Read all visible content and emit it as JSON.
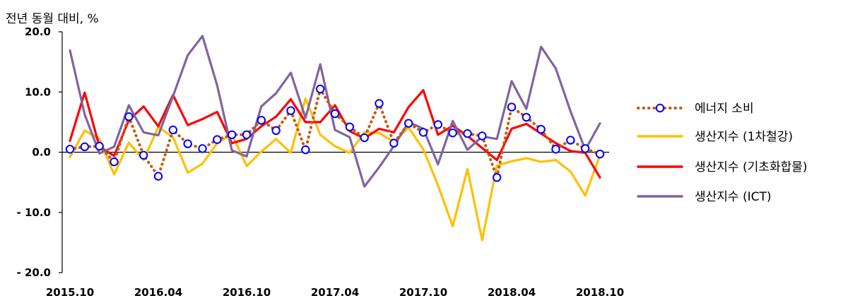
{
  "chart_data": {
    "type": "line",
    "ylabel": "전년 동월 대비, %",
    "ylim": [
      -20,
      20
    ],
    "y_ticks": [
      "20.0",
      "10.0",
      "0.0",
      "- 10.0",
      "- 20.0"
    ],
    "y_tick_values": [
      20,
      10,
      0,
      -10,
      -20
    ],
    "x_tick_labels": [
      "2015.10",
      "2016.04",
      "2016.10",
      "2017.04",
      "2017.10",
      "2018.04",
      "2018.10"
    ],
    "x_tick_index": [
      0,
      6,
      12,
      18,
      24,
      30,
      36
    ],
    "x": [
      "2015.10",
      "2015.11",
      "2015.12",
      "2016.01",
      "2016.02",
      "2016.03",
      "2016.04",
      "2016.05",
      "2016.06",
      "2016.07",
      "2016.08",
      "2016.09",
      "2016.10",
      "2016.11",
      "2016.12",
      "2017.01",
      "2017.02",
      "2017.03",
      "2017.04",
      "2017.05",
      "2017.06",
      "2017.07",
      "2017.08",
      "2017.09",
      "2017.10",
      "2017.11",
      "2017.12",
      "2018.01",
      "2018.02",
      "2018.03",
      "2018.04",
      "2018.05",
      "2018.06",
      "2018.07",
      "2018.08",
      "2018.09",
      "2018.10"
    ],
    "legend_position": "right",
    "series": [
      {
        "name": "에너지 소비",
        "style": "dotted-with-circles",
        "color": "#C55A11",
        "marker_color": "#0000FF",
        "values": [
          0.5,
          0.9,
          1.0,
          -1.6,
          5.9,
          -0.5,
          -4.0,
          3.7,
          1.4,
          0.6,
          2.1,
          2.9,
          2.9,
          5.3,
          3.6,
          6.9,
          0.4,
          10.5,
          6.4,
          4.2,
          2.4,
          8.1,
          1.5,
          4.8,
          3.3,
          4.6,
          3.2,
          3.1,
          2.7,
          -4.2,
          7.5,
          5.8,
          3.8,
          0.5,
          2.0,
          0.6,
          -0.3
        ]
      },
      {
        "name": "생산지수 (1차철강)",
        "style": "solid",
        "color": "#FFC000",
        "values": [
          -0.8,
          3.6,
          2.2,
          -3.7,
          1.6,
          -1.3,
          4.2,
          2.5,
          -3.4,
          -1.9,
          1.5,
          3.0,
          -2.3,
          0.1,
          2.2,
          -0.1,
          8.9,
          2.9,
          1.0,
          -0.1,
          3.3,
          3.2,
          1.7,
          4.1,
          0.5,
          -5.5,
          -12.3,
          -2.8,
          -14.6,
          -2.2,
          -1.5,
          -1.0,
          -1.6,
          -1.3,
          -3.2,
          -7.2,
          -0.5
        ]
      },
      {
        "name": "생산지수 (기초화합물)",
        "style": "solid",
        "color": "#FF0000",
        "values": [
          1.9,
          9.9,
          0.9,
          -0.6,
          5.3,
          7.6,
          4.3,
          9.5,
          4.5,
          5.5,
          6.7,
          1.5,
          2.2,
          4.3,
          5.9,
          8.8,
          5.0,
          5.0,
          7.8,
          3.5,
          2.3,
          3.9,
          3.3,
          7.5,
          10.3,
          2.9,
          4.4,
          2.7,
          0.7,
          -1.3,
          3.9,
          4.7,
          3.1,
          1.5,
          0.2,
          -0.1,
          -4.2
        ]
      },
      {
        "name": "생산지수 (ICT)",
        "style": "solid",
        "color": "#8064A2",
        "values": [
          16.9,
          6.3,
          -0.2,
          0.9,
          7.8,
          3.3,
          2.8,
          9.3,
          16.1,
          19.3,
          11.1,
          0.3,
          -0.7,
          7.6,
          9.8,
          13.2,
          5.7,
          14.6,
          3.7,
          2.5,
          -5.7,
          -2.5,
          1.0,
          5.0,
          3.9,
          -2.0,
          5.2,
          0.4,
          2.6,
          2.2,
          11.8,
          7.2,
          17.5,
          13.9,
          6.8,
          0.4,
          4.8
        ]
      }
    ]
  }
}
